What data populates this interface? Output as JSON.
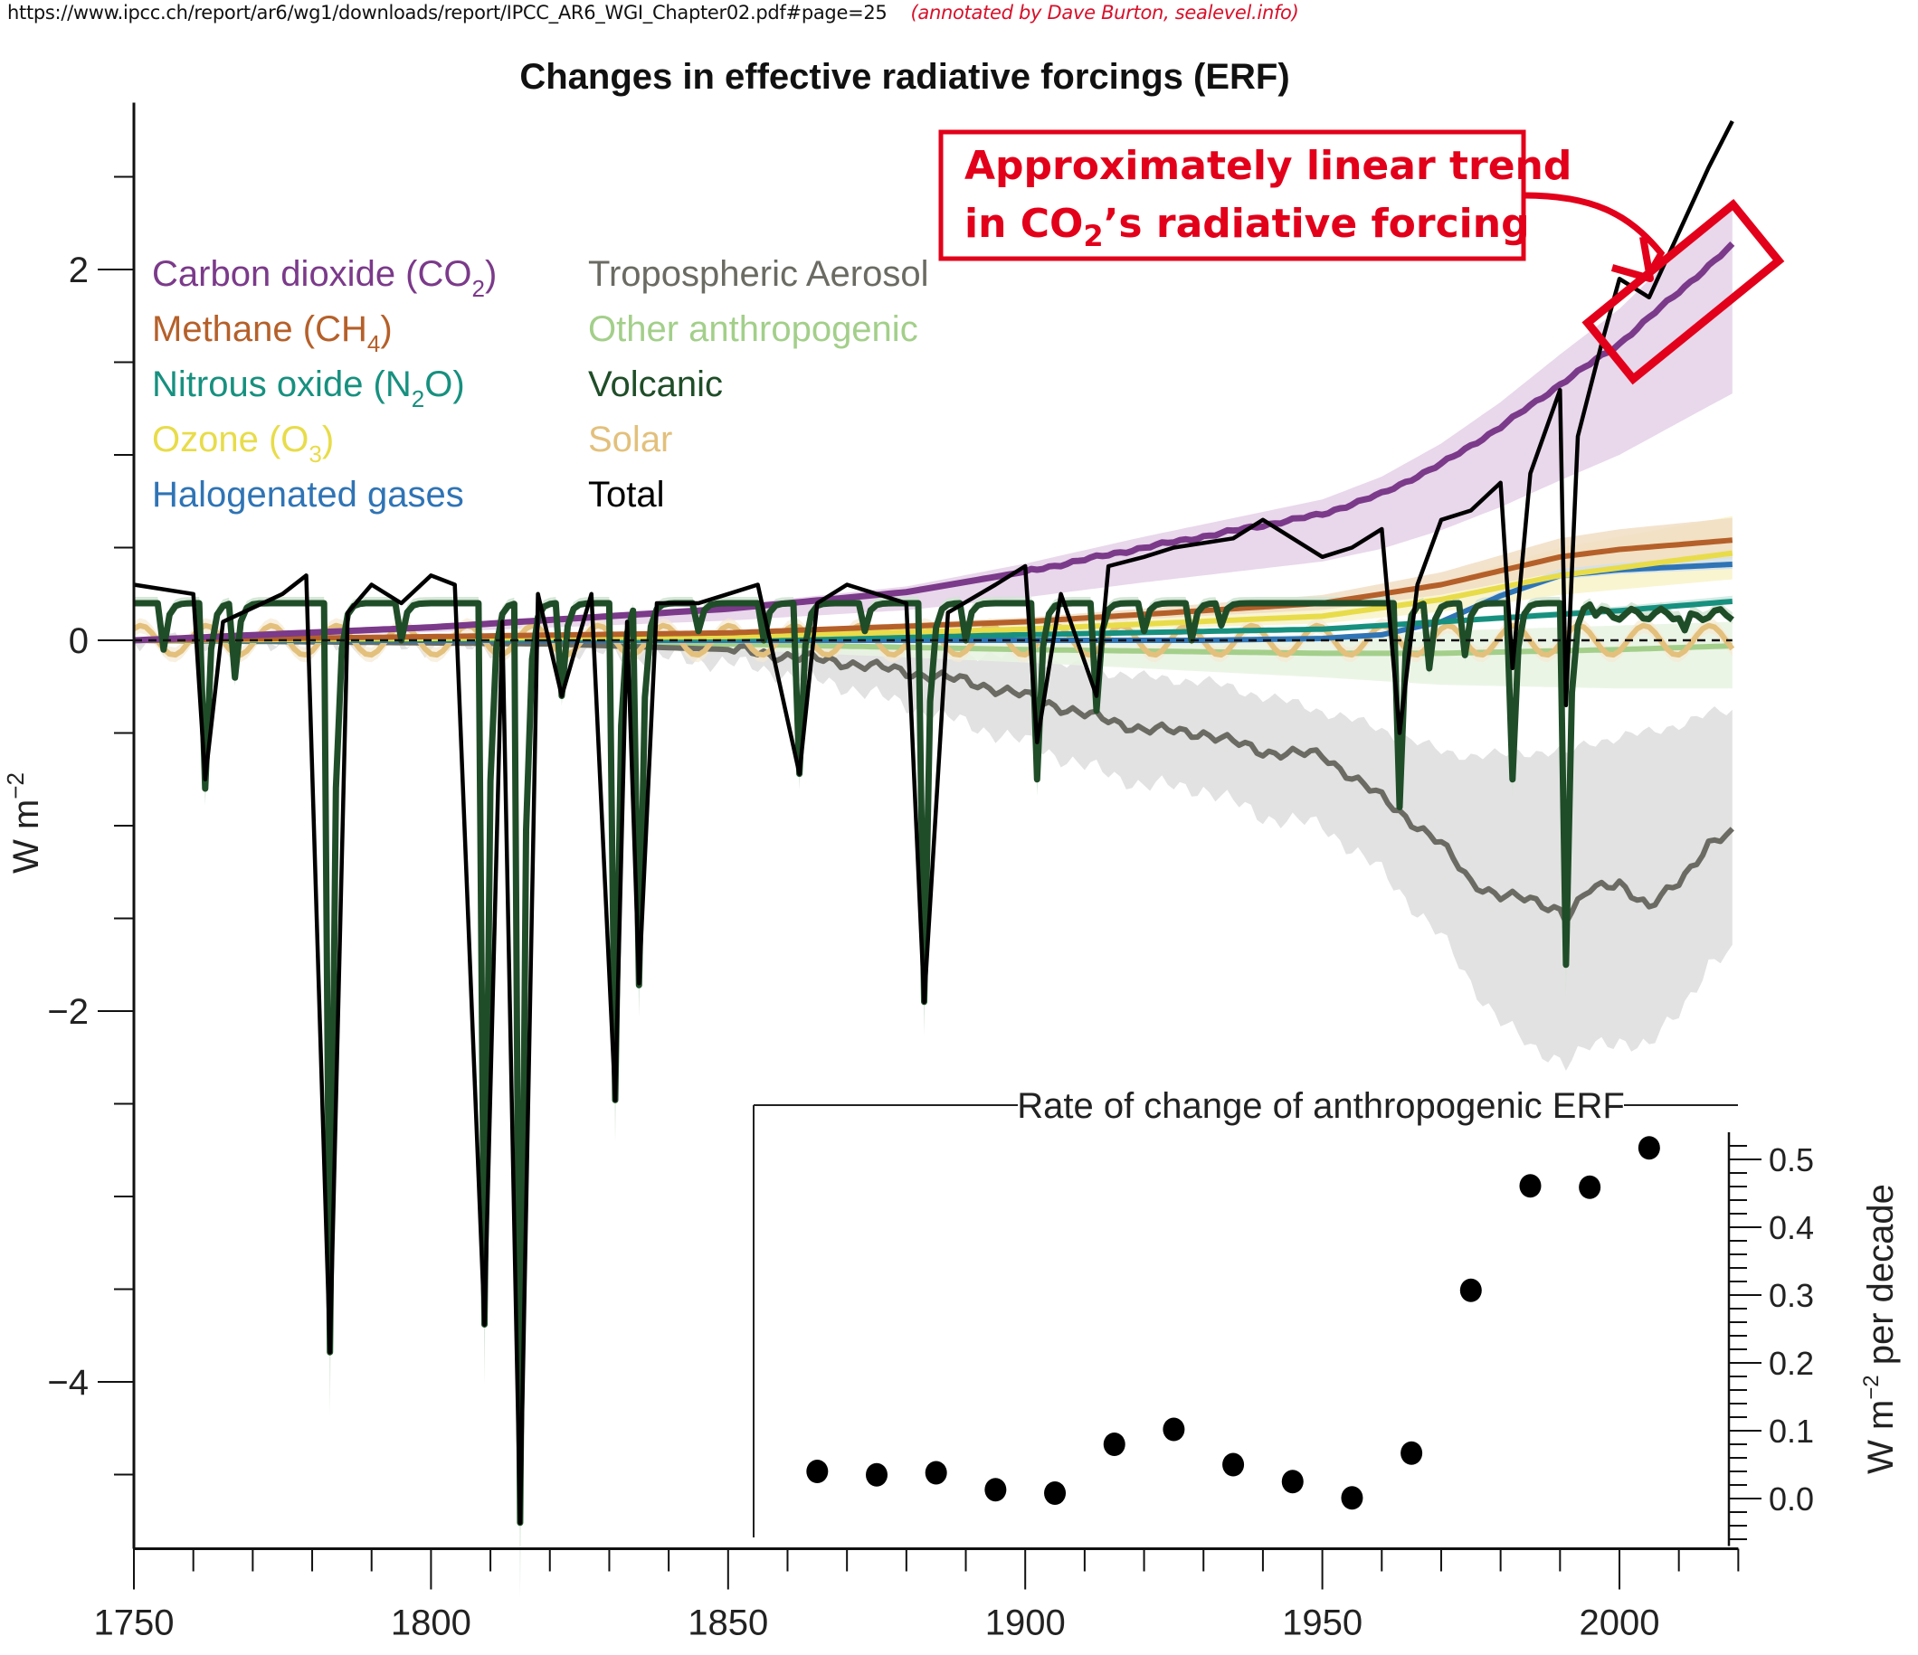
{
  "header": {
    "url": "https://www.ipcc.ch/report/ar6/wg1/downloads/report/IPCC_AR6_WGI_Chapter02.pdf#page=25",
    "credit": "(annotated by Dave Burton, sealevel.info)"
  },
  "annotation": {
    "line1": "Approximately linear trend",
    "line2_prefix": "in CO",
    "line2_sub": "2",
    "line2_suffix": "’s radiative forcing",
    "color": "#e2001a",
    "highlight_years": [
      2000,
      2019
    ]
  },
  "chart_data": [
    {
      "type": "line",
      "title": "Changes in effective radiative forcings (ERF)",
      "xlabel": "",
      "ylabel": "W m⁻²",
      "ylabel_main": "W m",
      "ylabel_sup": "−2",
      "xlim": [
        1750,
        2020
      ],
      "ylim": [
        -4.9,
        2.9
      ],
      "x_ticks": [
        1750,
        1800,
        1850,
        1900,
        1950,
        2000
      ],
      "x_minor_step": 10,
      "y_ticks": [
        2,
        0,
        -2,
        -4
      ],
      "y_tick_labels": [
        "2",
        "0",
        "−2",
        "−4"
      ],
      "y_minor_step": 0.5,
      "zero_line": "dashed",
      "grid": false,
      "legend_position": "top-left",
      "legend": [
        {
          "label": "Carbon dioxide (CO",
          "sub": "2",
          "tail": ")",
          "color": "#7b3a8a",
          "column": 1
        },
        {
          "label": "Methane (CH",
          "sub": "4",
          "tail": ")",
          "color": "#b5602a",
          "column": 1
        },
        {
          "label": "Nitrous oxide (N",
          "sub": "2",
          "tail": "O)",
          "color": "#17907f",
          "column": 1
        },
        {
          "label": "Ozone (O",
          "sub": "3",
          "tail": ")",
          "color": "#e8dc4a",
          "column": 1
        },
        {
          "label": "Halogenated gases",
          "sub": "",
          "tail": "",
          "color": "#2f74b5",
          "column": 1
        },
        {
          "label": "Tropospheric Aerosol",
          "sub": "",
          "tail": "",
          "color": "#6b6b63",
          "column": 2
        },
        {
          "label": "Other anthropogenic",
          "sub": "",
          "tail": "",
          "color": "#a3cf8a",
          "column": 2
        },
        {
          "label": "Volcanic",
          "sub": "",
          "tail": "",
          "color": "#1f4d28",
          "column": 2
        },
        {
          "label": "Solar",
          "sub": "",
          "tail": "",
          "color": "#e3c07c",
          "column": 2
        },
        {
          "label": "Total",
          "sub": "",
          "tail": "",
          "color": "#000000",
          "column": 2
        }
      ],
      "series": [
        {
          "name": "Carbon dioxide (CO2)",
          "color": "#7b3a8a",
          "band_color": "#e3cde6",
          "band_halfwidth": 0.25,
          "x": [
            1750,
            1800,
            1850,
            1880,
            1900,
            1920,
            1940,
            1950,
            1960,
            1970,
            1980,
            1990,
            2000,
            2010,
            2019
          ],
          "y": [
            0.0,
            0.07,
            0.17,
            0.26,
            0.37,
            0.5,
            0.62,
            0.68,
            0.79,
            0.95,
            1.15,
            1.38,
            1.6,
            1.88,
            2.13
          ]
        },
        {
          "name": "Methane (CH4)",
          "color": "#b5602a",
          "band_color": "#f0dcc1",
          "band_halfwidth": 0.12,
          "x": [
            1750,
            1850,
            1900,
            1950,
            1970,
            1990,
            2000,
            2019
          ],
          "y": [
            0.0,
            0.04,
            0.1,
            0.2,
            0.3,
            0.45,
            0.49,
            0.54
          ]
        },
        {
          "name": "Nitrous oxide (N2O)",
          "color": "#17907f",
          "band_color": "#c8e6df",
          "band_halfwidth": 0.03,
          "x": [
            1750,
            1850,
            1900,
            1950,
            1980,
            2000,
            2019
          ],
          "y": [
            0.0,
            0.01,
            0.03,
            0.06,
            0.12,
            0.16,
            0.21
          ]
        },
        {
          "name": "Ozone (O3)",
          "color": "#e8dc4a",
          "band_color": "#f7f2c6",
          "band_halfwidth": 0.2,
          "x": [
            1750,
            1850,
            1900,
            1950,
            1970,
            1990,
            2019
          ],
          "y": [
            0.0,
            0.02,
            0.06,
            0.13,
            0.22,
            0.35,
            0.47
          ]
        },
        {
          "name": "Halogenated gases",
          "color": "#2f74b5",
          "band_color": "#cfe0ee",
          "band_halfwidth": 0.04,
          "x": [
            1750,
            1930,
            1950,
            1960,
            1970,
            1980,
            1990,
            2000,
            2019
          ],
          "y": [
            0.0,
            0.0,
            0.01,
            0.03,
            0.1,
            0.24,
            0.35,
            0.38,
            0.41
          ]
        },
        {
          "name": "Tropospheric Aerosol",
          "color": "#6b6b63",
          "band_color": "#e2e2e2",
          "x": [
            1750,
            1820,
            1850,
            1870,
            1890,
            1900,
            1910,
            1920,
            1930,
            1940,
            1950,
            1960,
            1970,
            1975,
            1980,
            1985,
            1990,
            1991,
            1995,
            2000,
            2005,
            2010,
            2015,
            2019
          ],
          "y": [
            0.0,
            -0.02,
            -0.05,
            -0.12,
            -0.22,
            -0.3,
            -0.4,
            -0.48,
            -0.5,
            -0.6,
            -0.62,
            -0.85,
            -1.1,
            -1.3,
            -1.38,
            -1.4,
            -1.45,
            -1.5,
            -1.35,
            -1.3,
            -1.45,
            -1.3,
            -1.1,
            -1.05
          ],
          "band_lower": [
            0.0,
            -0.05,
            -0.12,
            -0.25,
            -0.45,
            -0.55,
            -0.68,
            -0.78,
            -0.8,
            -0.95,
            -1.0,
            -1.25,
            -1.6,
            -1.85,
            -2.05,
            -2.2,
            -2.25,
            -2.28,
            -2.2,
            -2.15,
            -2.2,
            -2.0,
            -1.75,
            -1.7
          ],
          "band_upper": [
            0.0,
            0.0,
            -0.01,
            -0.03,
            -0.07,
            -0.1,
            -0.15,
            -0.2,
            -0.22,
            -0.3,
            -0.38,
            -0.48,
            -0.6,
            -0.62,
            -0.62,
            -0.6,
            -0.6,
            -0.62,
            -0.55,
            -0.52,
            -0.5,
            -0.45,
            -0.4,
            -0.38
          ]
        },
        {
          "name": "Other anthropogenic",
          "color": "#a3cf8a",
          "band_color": "#e9f4e3",
          "x": [
            1750,
            1850,
            1900,
            1950,
            1970,
            2000,
            2019
          ],
          "y": [
            0.0,
            -0.02,
            -0.05,
            -0.07,
            -0.07,
            -0.05,
            -0.03
          ],
          "band_lower": [
            0.0,
            -0.05,
            -0.12,
            -0.2,
            -0.24,
            -0.26,
            -0.26
          ],
          "band_upper": [
            0.0,
            0.0,
            0.0,
            0.03,
            0.05,
            0.08,
            0.1
          ]
        },
        {
          "name": "Volcanic",
          "color": "#1f4d28",
          "band_color": "#d2e4d4",
          "baseline": 0.2,
          "eruptions": [
            {
              "year": 1755,
              "min": -0.05
            },
            {
              "year": 1762,
              "min": -0.8
            },
            {
              "year": 1767,
              "min": -0.2
            },
            {
              "year": 1783,
              "min": -3.84
            },
            {
              "year": 1795,
              "min": 0.0
            },
            {
              "year": 1809,
              "min": -3.69
            },
            {
              "year": 1815,
              "min": -4.76
            },
            {
              "year": 1822,
              "min": -0.3
            },
            {
              "year": 1831,
              "min": -2.48
            },
            {
              "year": 1835,
              "min": -1.85
            },
            {
              "year": 1845,
              "min": 0.05
            },
            {
              "year": 1856,
              "min": 0.0
            },
            {
              "year": 1862,
              "min": -0.72
            },
            {
              "year": 1873,
              "min": 0.05
            },
            {
              "year": 1883,
              "min": -1.95
            },
            {
              "year": 1890,
              "min": 0.0
            },
            {
              "year": 1902,
              "min": -0.75
            },
            {
              "year": 1912,
              "min": -0.38
            },
            {
              "year": 1920,
              "min": 0.05
            },
            {
              "year": 1928,
              "min": 0.0
            },
            {
              "year": 1933,
              "min": 0.08
            },
            {
              "year": 1963,
              "min": -0.9
            },
            {
              "year": 1968,
              "min": -0.15
            },
            {
              "year": 1974,
              "min": -0.08
            },
            {
              "year": 1982,
              "min": -0.75
            },
            {
              "year": 1991,
              "min": -1.75
            },
            {
              "year": 2011,
              "min": 0.1
            }
          ]
        },
        {
          "name": "Solar",
          "color": "#e3c07c",
          "band_color": "#f5ead3",
          "mean": 0.0,
          "amplitude": 0.08,
          "cycle_years": 11,
          "x": [
            1750,
            2019
          ]
        },
        {
          "name": "Total",
          "color": "#000000",
          "x": [
            1750,
            1760,
            1762,
            1765,
            1775,
            1779,
            1783,
            1786,
            1790,
            1795,
            1800,
            1804,
            1809,
            1812,
            1815,
            1818,
            1822,
            1827,
            1831,
            1833,
            1835,
            1838,
            1845,
            1850,
            1855,
            1862,
            1865,
            1870,
            1880,
            1883,
            1887,
            1895,
            1900,
            1902,
            1906,
            1912,
            1914,
            1920,
            1925,
            1935,
            1940,
            1950,
            1955,
            1960,
            1963,
            1966,
            1970,
            1975,
            1980,
            1982,
            1985,
            1990,
            1991,
            1993,
            1997,
            2000,
            2005,
            2010,
            2015,
            2019
          ],
          "y": [
            0.3,
            0.25,
            -0.75,
            0.1,
            0.25,
            0.35,
            -3.84,
            0.15,
            0.3,
            0.2,
            0.35,
            0.3,
            -3.69,
            0.1,
            -4.76,
            0.25,
            -0.3,
            0.25,
            -2.48,
            0.1,
            -1.85,
            0.2,
            0.2,
            0.25,
            0.3,
            -0.72,
            0.2,
            0.3,
            0.2,
            -1.95,
            0.15,
            0.3,
            0.4,
            -0.55,
            0.25,
            -0.3,
            0.4,
            0.45,
            0.5,
            0.55,
            0.65,
            0.45,
            0.5,
            0.6,
            -0.5,
            0.3,
            0.65,
            0.7,
            0.85,
            -0.15,
            0.9,
            1.35,
            -0.35,
            1.1,
            1.6,
            1.95,
            1.85,
            2.2,
            2.55,
            2.8
          ]
        }
      ]
    },
    {
      "type": "scatter",
      "title": "Rate of change of anthropogenic ERF",
      "ylabel_main": "W m",
      "ylabel_sup": "−2",
      "ylabel_tail": " per decade",
      "ylim": [
        -0.07,
        0.54
      ],
      "y_ticks": [
        0.0,
        0.1,
        0.2,
        0.3,
        0.4,
        0.5
      ],
      "y_tick_labels": [
        "0.0",
        "0.1",
        "0.2",
        "0.3",
        "0.4",
        "0.5"
      ],
      "y_minor_step": 0.02,
      "y_axis_side": "right",
      "x": [
        1865,
        1875,
        1885,
        1895,
        1905,
        1915,
        1925,
        1935,
        1945,
        1955,
        1965,
        1975,
        1985,
        1995,
        2005
      ],
      "values": [
        0.04,
        0.035,
        0.038,
        0.013,
        0.008,
        0.08,
        0.102,
        0.05,
        0.025,
        0.001,
        0.067,
        0.307,
        0.461,
        0.459,
        0.517
      ]
    }
  ]
}
